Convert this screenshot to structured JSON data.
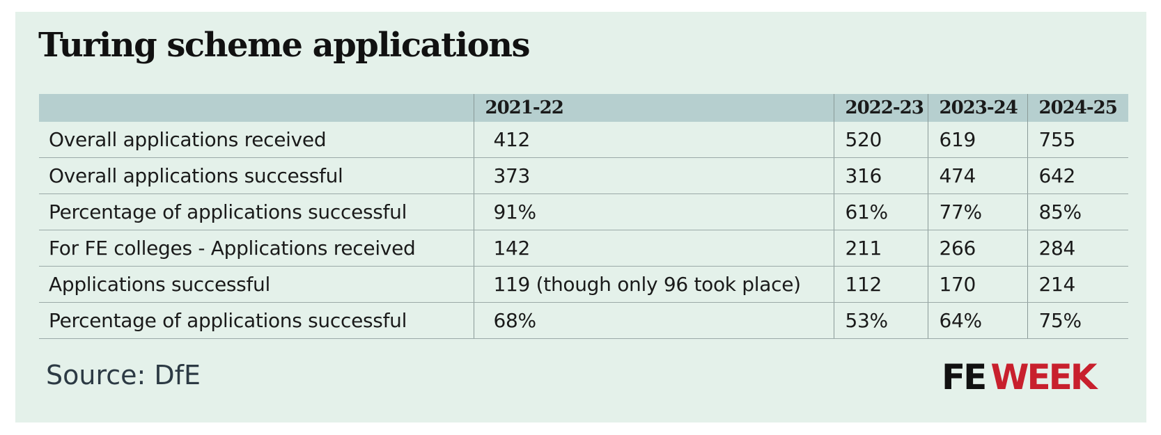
{
  "chart_data": {
    "type": "table",
    "title": "Turing scheme applications",
    "columns": [
      "",
      "2021-22",
      "2022-23",
      "2023-24",
      "2024-25"
    ],
    "rows": [
      {
        "label": "Overall applications received",
        "values": [
          "412",
          "520",
          "619",
          "755"
        ]
      },
      {
        "label": "Overall applications successful",
        "values": [
          "373",
          "316",
          "474",
          "642"
        ]
      },
      {
        "label": "Percentage of applications successful",
        "values": [
          "91%",
          "61%",
          "77%",
          "85%"
        ]
      },
      {
        "label": "For FE colleges - Applications received",
        "values": [
          "142",
          "211",
          "266",
          "284"
        ]
      },
      {
        "label": "Applications successful",
        "values": [
          "119 (though only 96 took place)",
          "112",
          "170",
          "214"
        ]
      },
      {
        "label": "Percentage of applications successful",
        "values": [
          "68%",
          "53%",
          "64%",
          "75%"
        ]
      }
    ]
  },
  "footer": {
    "source": "Source: DfE",
    "logo": "FE WEEK",
    "logo_parts": [
      "FE",
      "WEEK"
    ]
  },
  "colors": {
    "background": "#e4f1ea",
    "header_row": "#b6cfcf",
    "logo_accent": "#c8202d",
    "logo_dark": "#111111"
  }
}
